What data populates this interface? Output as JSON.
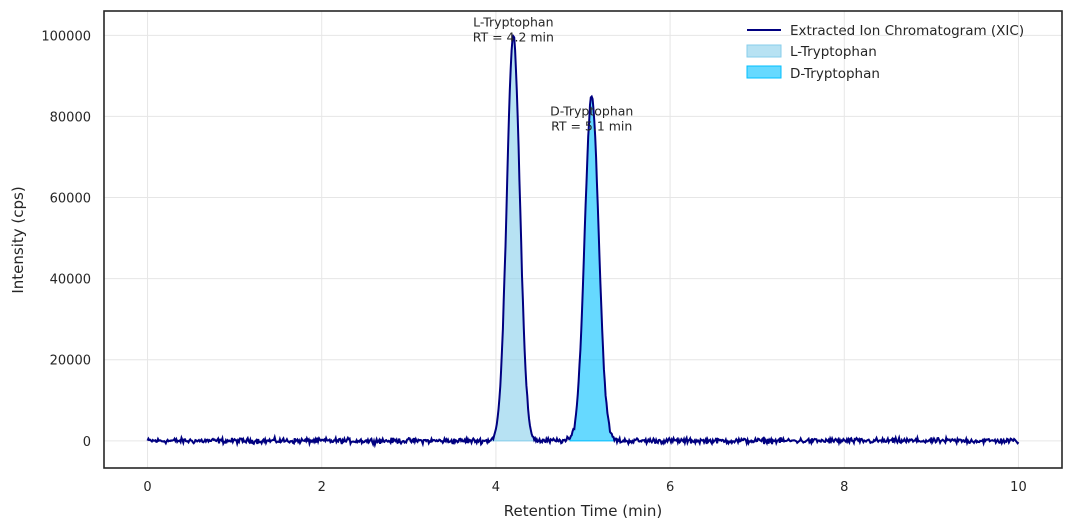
{
  "chart_data": {
    "type": "line",
    "title": "",
    "xlabel": "Retention Time (min)",
    "ylabel": "Intensity (cps)",
    "xlim": [
      -0.5,
      10.5
    ],
    "ylim": [
      -6700,
      106000
    ],
    "xticks": [
      0,
      2,
      4,
      6,
      8,
      10
    ],
    "yticks": [
      0,
      20000,
      40000,
      60000,
      80000,
      100000
    ],
    "grid": true,
    "legend_position": "top-right",
    "x_range": [
      0,
      10
    ],
    "baseline_noise_cps": 500,
    "series": [
      {
        "name": "Extracted Ion Chromatogram (XIC)",
        "kind": "line",
        "color": "#000080"
      },
      {
        "name": "L-Tryptophan",
        "kind": "fill",
        "color": "#87CEEB",
        "rt": 4.2,
        "height": 100000,
        "sigma": 0.075,
        "fill_range": [
          3.95,
          4.45
        ]
      },
      {
        "name": "D-Tryptophan",
        "kind": "fill",
        "color": "#00BFFF",
        "rt": 5.1,
        "height": 85000,
        "sigma": 0.08,
        "fill_range": [
          4.85,
          5.35
        ]
      }
    ],
    "annotations": [
      {
        "lines": [
          "L-Tryptophan",
          "RT = 4.2 min"
        ],
        "x": 4.2,
        "y": 100000
      },
      {
        "lines": [
          "D-Tryptophan",
          "RT = 5.1 min"
        ],
        "x": 5.1,
        "y": 78000
      }
    ]
  }
}
